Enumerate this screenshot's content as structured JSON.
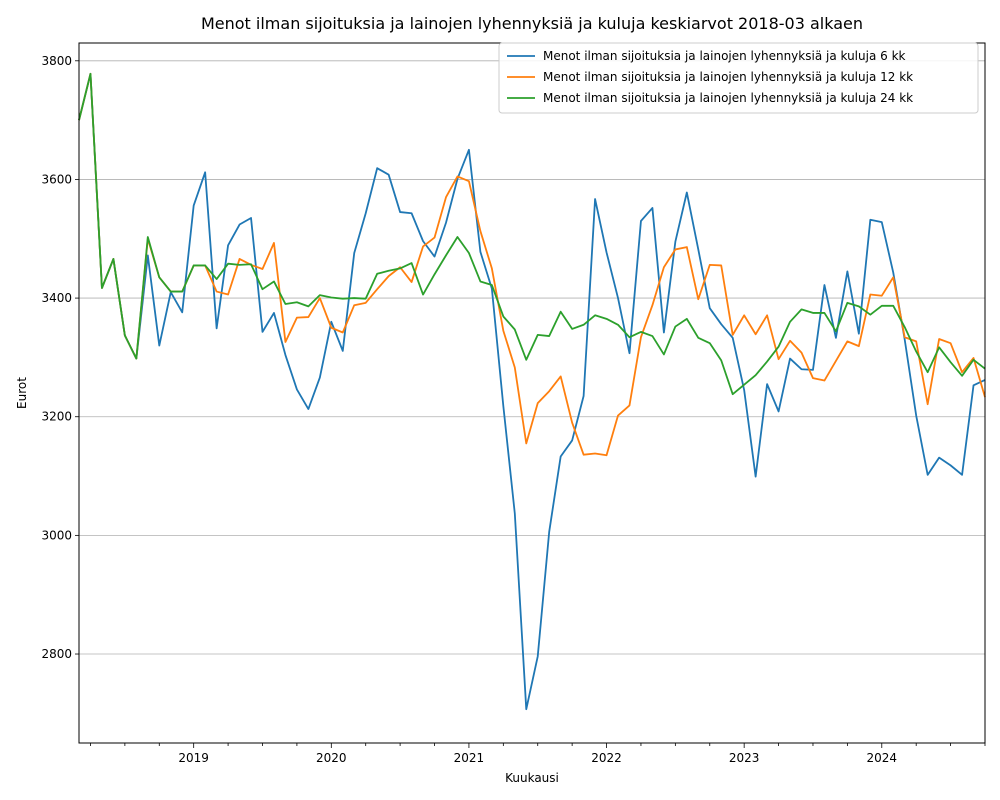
{
  "chart_data": {
    "type": "line",
    "title": "Menot ilman sijoituksia ja lainojen lyhennyksiä ja kuluja keskiarvot 2018-03 alkaen",
    "xlabel": "Kuukausi",
    "ylabel": "Eurot",
    "x_start": "2018-03",
    "x_end": "2024-10",
    "x_ticks": [
      "2019",
      "2020",
      "2021",
      "2022",
      "2023",
      "2024"
    ],
    "ylim": [
      2650,
      3830
    ],
    "y_ticks": [
      2800,
      3000,
      3200,
      3400,
      3600,
      3800
    ],
    "grid": "horizontal",
    "legend_position": "top-right",
    "series": [
      {
        "name": "Menot ilman sijoituksia ja lainojen lyhennyksiä ja kuluja 6 kk",
        "color": "#1f77b4",
        "values": [
          3700,
          3778,
          3417,
          3466,
          3337,
          3298,
          3472,
          3320,
          3410,
          3376,
          3556,
          3612,
          3349,
          3489,
          3524,
          3535,
          3343,
          3375,
          3304,
          3246,
          3213,
          3266,
          3360,
          3311,
          3476,
          3543,
          3619,
          3608,
          3545,
          3543,
          3496,
          3470,
          3527,
          3601,
          3650,
          3478,
          3416,
          3218,
          3037,
          2707,
          2796,
          3006,
          3133,
          3160,
          3235,
          3567,
          3477,
          3400,
          3307,
          3530,
          3552,
          3342,
          3495,
          3578,
          3482,
          3383,
          3356,
          3333,
          3245,
          3099,
          3255,
          3209,
          3298,
          3280,
          3279,
          3422,
          3333,
          3445,
          3340,
          3532,
          3528,
          3443,
          3330,
          3202,
          3102,
          3131,
          3118,
          3102,
          3253,
          3262
        ]
      },
      {
        "name": "Menot ilman sijoituksia ja lainojen lyhennyksiä ja kuluja 12 kk",
        "color": "#ff7f0e",
        "values": [
          3700,
          3778,
          3417,
          3466,
          3337,
          3298,
          3500,
          3435,
          3411,
          3411,
          3455,
          3455,
          3411,
          3406,
          3466,
          3456,
          3449,
          3493,
          3326,
          3367,
          3368,
          3400,
          3350,
          3342,
          3388,
          3392,
          3415,
          3437,
          3452,
          3427,
          3487,
          3502,
          3570,
          3605,
          3597,
          3513,
          3450,
          3345,
          3283,
          3155,
          3223,
          3243,
          3268,
          3190,
          3136,
          3138,
          3135,
          3202,
          3219,
          3334,
          3388,
          3452,
          3482,
          3486,
          3398,
          3456,
          3455,
          3338,
          3371,
          3339,
          3371,
          3297,
          3328,
          3308,
          3265,
          3261,
          3294,
          3327,
          3319,
          3406,
          3404,
          3435,
          3334,
          3327,
          3221,
          3331,
          3324,
          3275,
          3299,
          3233
        ]
      },
      {
        "name": "Menot ilman sijoituksia ja lainojen lyhennyksiä ja kuluja 24 kk",
        "color": "#2ca02c",
        "values": [
          3700,
          3778,
          3417,
          3466,
          3337,
          3298,
          3503,
          3435,
          3411,
          3411,
          3455,
          3455,
          3432,
          3458,
          3456,
          3457,
          3415,
          3428,
          3390,
          3393,
          3386,
          3405,
          3401,
          3399,
          3400,
          3399,
          3441,
          3446,
          3450,
          3459,
          3406,
          3440,
          3472,
          3503,
          3476,
          3428,
          3422,
          3369,
          3347,
          3296,
          3338,
          3336,
          3377,
          3348,
          3355,
          3371,
          3365,
          3355,
          3334,
          3343,
          3336,
          3305,
          3352,
          3365,
          3333,
          3324,
          3295,
          3238,
          3254,
          3270,
          3293,
          3318,
          3360,
          3381,
          3375,
          3375,
          3344,
          3392,
          3386,
          3372,
          3387,
          3387,
          3351,
          3310,
          3275,
          3317,
          3292,
          3269,
          3296,
          3281
        ]
      }
    ]
  }
}
